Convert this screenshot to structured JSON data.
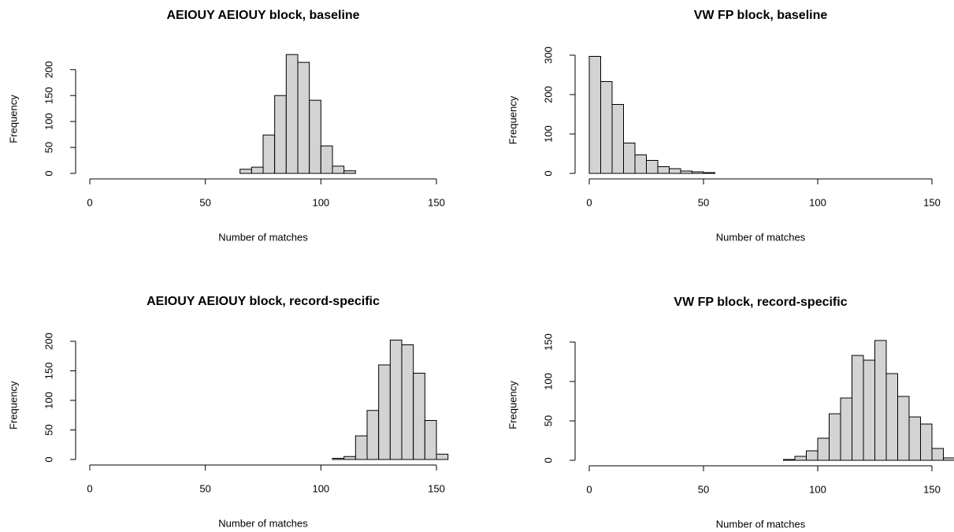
{
  "chart_data": [
    {
      "type": "histogram",
      "title": "AEIOUY AEIOUY block, baseline",
      "x_label": "Number of matches",
      "y_label": "Frequency",
      "bins": [
        65,
        70,
        75,
        80,
        85,
        90,
        95,
        100,
        105,
        110,
        115
      ],
      "values": [
        8,
        12,
        74,
        150,
        229,
        214,
        141,
        53,
        14,
        5
      ],
      "color": "#d3d3d3",
      "xlim": [
        0,
        150
      ],
      "xticks": [
        0,
        50,
        100,
        150
      ],
      "ylim": [
        0,
        240
      ],
      "yticks": [
        0,
        50,
        100,
        150,
        200
      ]
    },
    {
      "type": "histogram",
      "title": "VW FP block, baseline",
      "x_label": "Number of matches",
      "y_label": "Frequency",
      "bins": [
        0,
        5,
        10,
        15,
        20,
        25,
        30,
        35,
        40,
        45,
        50,
        55
      ],
      "values": [
        297,
        233,
        175,
        77,
        47,
        33,
        17,
        12,
        6,
        4,
        2
      ],
      "color": "#d3d3d3",
      "xlim": [
        0,
        150
      ],
      "xticks": [
        0,
        50,
        100,
        150
      ],
      "ylim": [
        0,
        310
      ],
      "yticks": [
        0,
        100,
        200,
        300
      ]
    },
    {
      "type": "histogram",
      "title": "AEIOUY AEIOUY block, record-specific",
      "x_label": "Number of matches",
      "y_label": "Frequency",
      "bins": [
        105,
        110,
        115,
        120,
        125,
        130,
        135,
        140,
        145,
        150,
        155
      ],
      "values": [
        2,
        5,
        40,
        83,
        160,
        202,
        194,
        146,
        66,
        9
      ],
      "color": "#d3d3d3",
      "xlim": [
        0,
        150
      ],
      "xticks": [
        0,
        50,
        100,
        150
      ],
      "ylim": [
        0,
        210
      ],
      "yticks": [
        0,
        50,
        100,
        150,
        200
      ]
    },
    {
      "type": "histogram",
      "title": "VW FP block, record-specific",
      "x_label": "Number of matches",
      "y_label": "Frequency",
      "bins": [
        85,
        90,
        95,
        100,
        105,
        110,
        115,
        120,
        125,
        130,
        135,
        140,
        145,
        150,
        155,
        160
      ],
      "values": [
        1,
        5,
        12,
        28,
        59,
        79,
        133,
        127,
        152,
        110,
        81,
        55,
        46,
        15,
        3
      ],
      "color": "#d3d3d3",
      "xlim": [
        0,
        150
      ],
      "xticks": [
        0,
        50,
        100,
        150
      ],
      "ylim": [
        0,
        160
      ],
      "yticks": [
        0,
        50,
        100,
        150
      ]
    }
  ]
}
